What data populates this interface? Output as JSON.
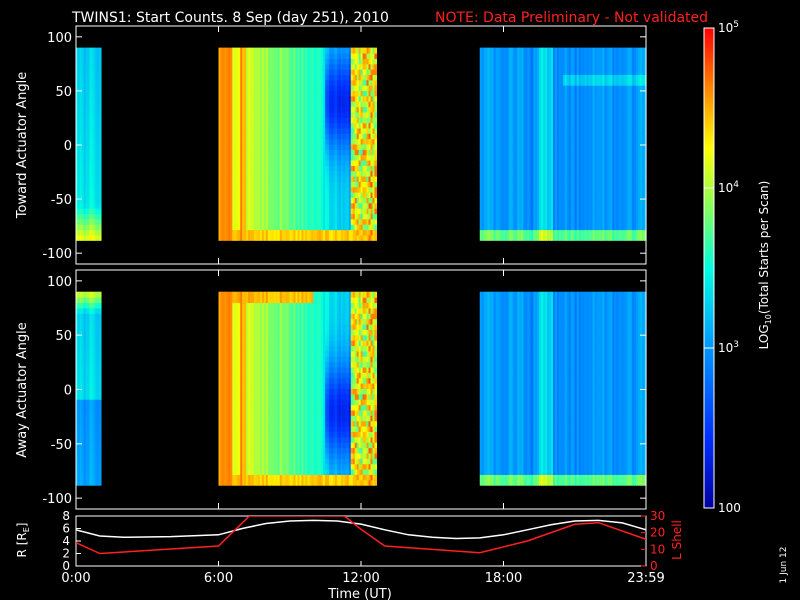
{
  "title": {
    "main": "TWINS1: Start Counts.  8 Sep (day 251), 2010",
    "note": "NOTE: Data Preliminary - Not validated"
  },
  "colors": {
    "background": "#000000",
    "axes": "#ffffff",
    "note": "#ff2020",
    "r_line": "#ffffff",
    "lshell_line": "#ff2020"
  },
  "chart_data": [
    {
      "type": "heatmap",
      "name": "toward-spectrogram",
      "ylabel": "Toward Actuator Angle",
      "ylim": [
        -110,
        110
      ],
      "yticks": [
        100,
        50,
        0,
        -50,
        -100
      ],
      "data_yrange": [
        -88,
        90
      ],
      "xlim": [
        0,
        24
      ],
      "data_intervals": [
        [
          0.0,
          1.05
        ],
        [
          6.0,
          12.65
        ],
        [
          17.0,
          24.0
        ]
      ],
      "log_scale": true
    },
    {
      "type": "heatmap",
      "name": "away-spectrogram",
      "ylabel": "Away Actuator Angle",
      "ylim": [
        -110,
        110
      ],
      "yticks": [
        100,
        50,
        0,
        -50,
        -100
      ],
      "data_yrange": [
        -88,
        90
      ],
      "xlim": [
        0,
        24
      ],
      "data_intervals": [
        [
          0.0,
          1.05
        ],
        [
          6.0,
          12.65
        ],
        [
          17.0,
          24.0
        ]
      ],
      "log_scale": true
    },
    {
      "type": "line",
      "name": "orbit-panel",
      "ylabel": "R [R",
      "ylabel_sub": "E",
      "ylabel_end": "]",
      "ylim": [
        0,
        8
      ],
      "yticks": [
        0,
        2,
        4,
        6,
        8
      ],
      "y2label": "L Shell",
      "y2lim": [
        0,
        30
      ],
      "y2ticks": [
        0,
        10,
        20,
        30
      ],
      "xlabel": "Time (UT)",
      "xticks": [
        "0:00",
        "6:00",
        "12:00",
        "18:00",
        "23:59"
      ],
      "xtick_values": [
        0,
        6,
        12,
        18,
        24
      ],
      "series": [
        {
          "axis": "left",
          "x": [
            0,
            1,
            2,
            4,
            6,
            7,
            8,
            9,
            10,
            11,
            12,
            13,
            14,
            15,
            16,
            17,
            18,
            19,
            20,
            21,
            22,
            23,
            24
          ],
          "y": [
            5.8,
            4.8,
            4.6,
            4.7,
            5.0,
            6.0,
            6.8,
            7.2,
            7.3,
            7.2,
            6.7,
            5.8,
            5.0,
            4.6,
            4.4,
            4.5,
            5.0,
            5.8,
            6.6,
            7.2,
            7.3,
            6.9,
            5.8
          ]
        },
        {
          "axis": "right",
          "x": [
            0,
            1,
            6,
            7.3,
            11.3,
            12,
            13,
            17,
            19,
            21,
            22,
            24
          ],
          "y": [
            14,
            7.5,
            12,
            30,
            30,
            22,
            12,
            8,
            15,
            25,
            26,
            16
          ]
        }
      ]
    }
  ],
  "colorbar": {
    "label": "LOG",
    "label_sub": "10",
    "label_end": "(Total Starts per Scan)",
    "ticks": [
      {
        "base": "10",
        "exp": "5",
        "value": 100000
      },
      {
        "base": "10",
        "exp": "4",
        "value": 10000
      },
      {
        "base": "10",
        "exp": "3",
        "value": 1000
      },
      {
        "base": "100",
        "exp": "",
        "value": 100
      }
    ],
    "range": [
      100,
      100000
    ]
  },
  "date_stamp": "1 Jun 12"
}
